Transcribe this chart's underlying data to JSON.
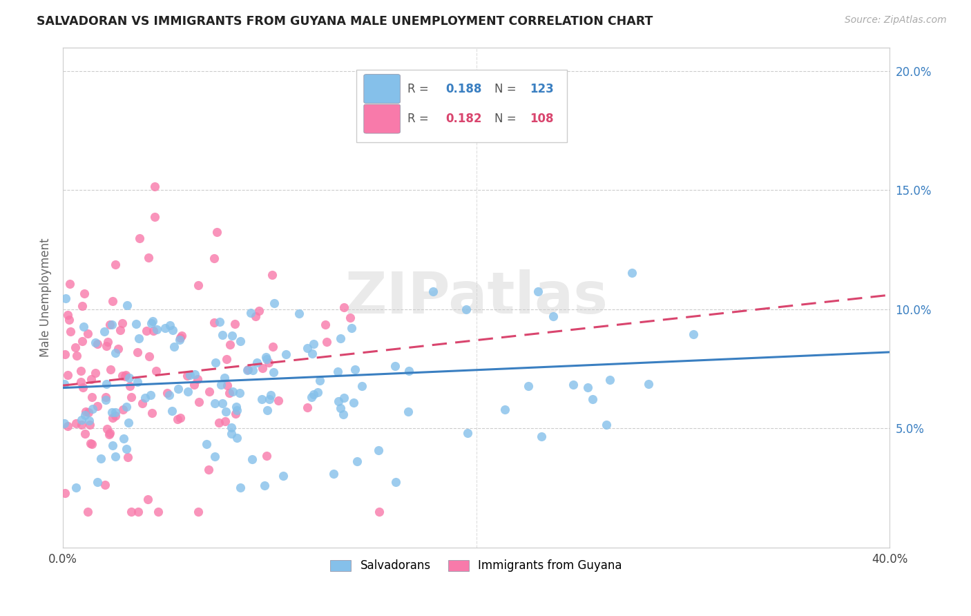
{
  "title": "SALVADORAN VS IMMIGRANTS FROM GUYANA MALE UNEMPLOYMENT CORRELATION CHART",
  "source": "Source: ZipAtlas.com",
  "ylabel": "Male Unemployment",
  "xlim": [
    0.0,
    0.4
  ],
  "ylim": [
    0.0,
    0.21
  ],
  "xtick_vals": [
    0.0,
    0.05,
    0.1,
    0.15,
    0.2,
    0.25,
    0.3,
    0.35,
    0.4
  ],
  "xtick_labels": [
    "0.0%",
    "",
    "",
    "",
    "",
    "",
    "",
    "",
    "40.0%"
  ],
  "ytick_vals": [
    0.0,
    0.05,
    0.1,
    0.15,
    0.2
  ],
  "ytick_labels_right": [
    "",
    "5.0%",
    "10.0%",
    "15.0%",
    "20.0%"
  ],
  "legend_blue_r": "0.188",
  "legend_blue_n": "123",
  "legend_pink_r": "0.182",
  "legend_pink_n": "108",
  "blue_color": "#85c0ea",
  "pink_color": "#f87aaa",
  "blue_line_color": "#3a7fc1",
  "pink_line_color": "#d9456e",
  "watermark": "ZIPatlas",
  "blue_line_y0": 0.067,
  "blue_line_y1": 0.082,
  "pink_line_y0": 0.068,
  "pink_line_y1": 0.106
}
